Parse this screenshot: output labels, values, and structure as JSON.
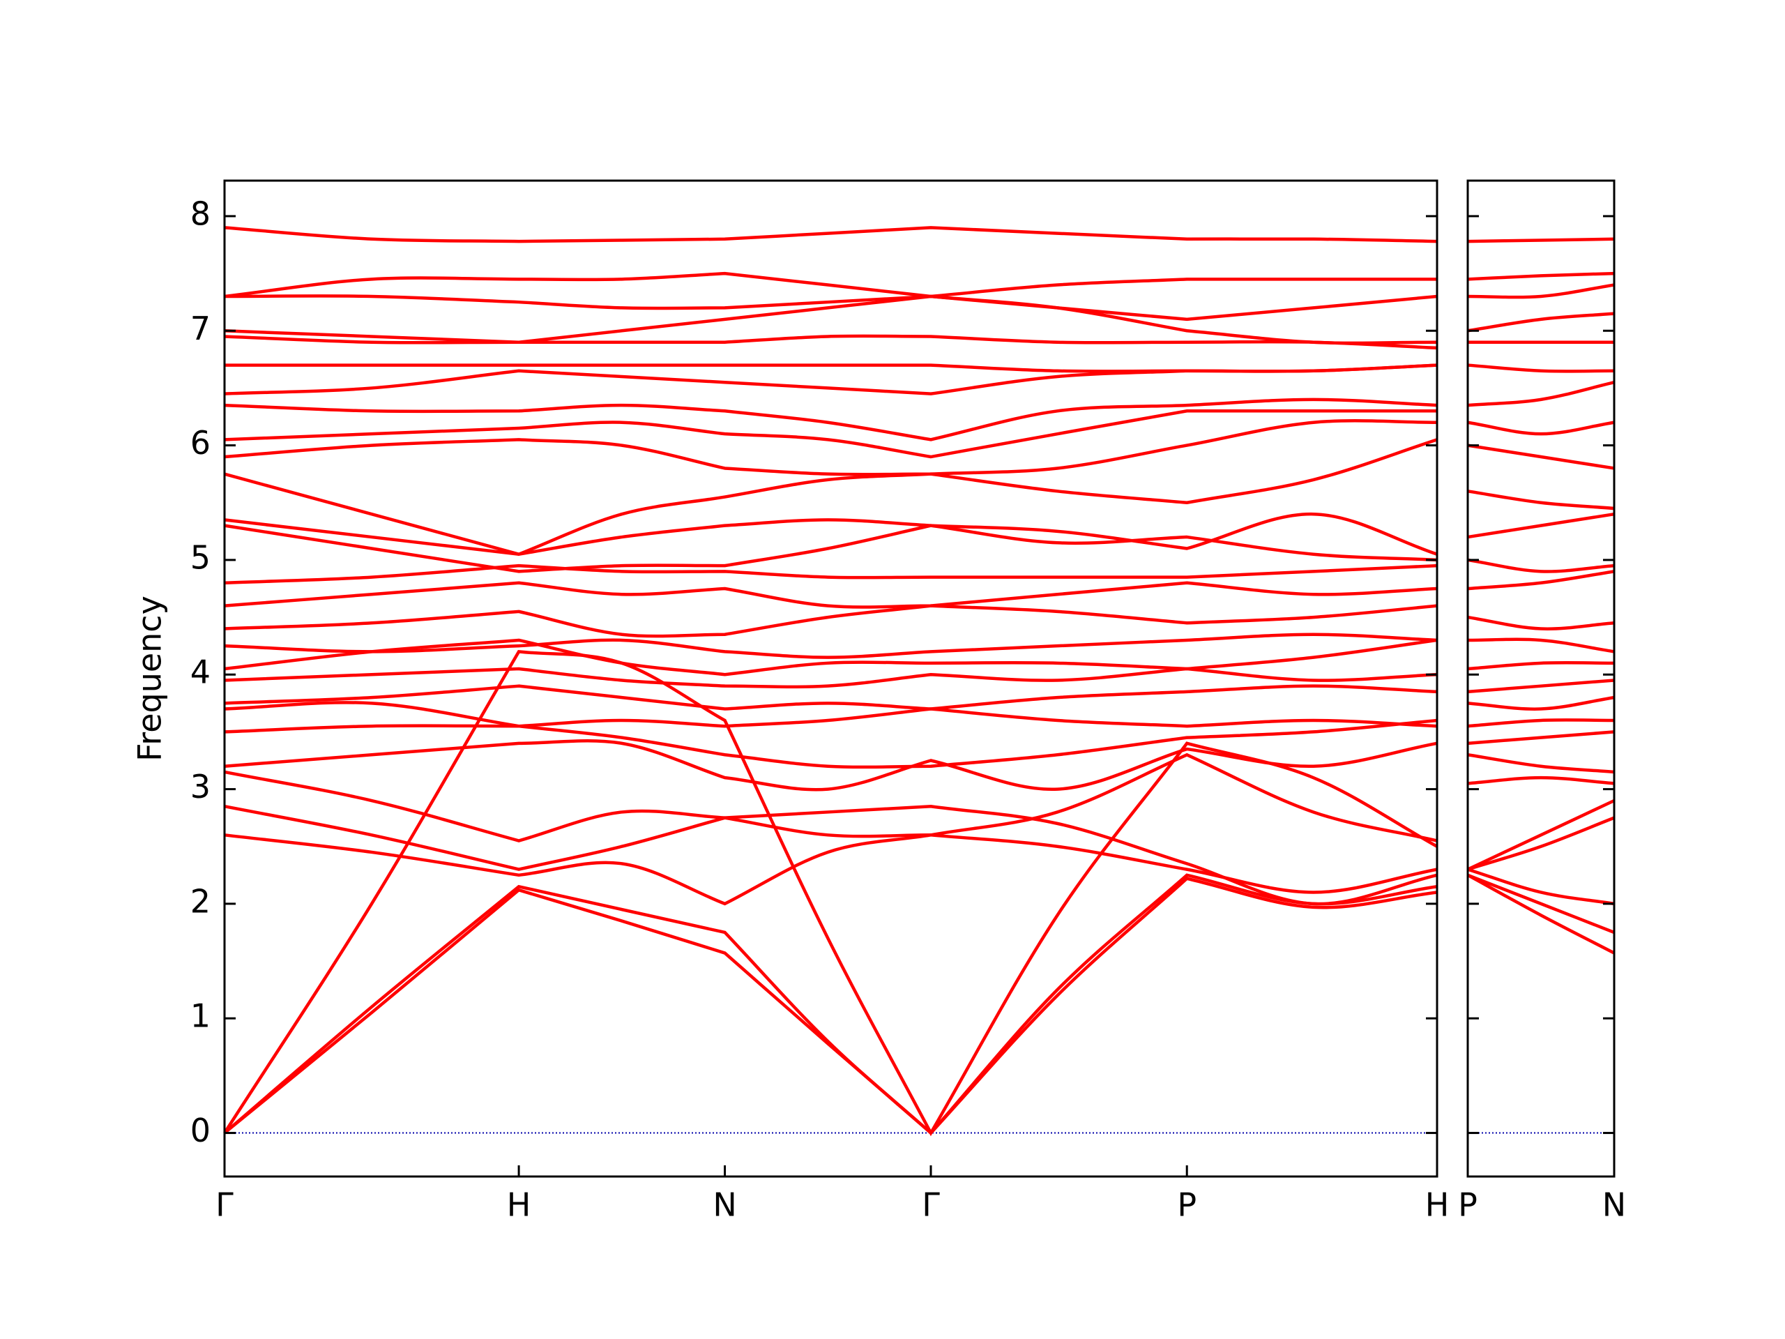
{
  "chart_data": [
    {
      "type": "line",
      "ylabel": "Frequency",
      "color": "#ff0000",
      "hline": 0,
      "hline_color": "#0000aa",
      "xlim": [
        0,
        4.12
      ],
      "ylim": [
        -0.38,
        8.31
      ],
      "yticks": [
        0,
        1,
        2,
        3,
        4,
        5,
        6,
        7,
        8
      ],
      "xticks": [
        {
          "value": 0,
          "label": "Γ"
        },
        {
          "value": 1,
          "label": "H"
        },
        {
          "value": 1.7,
          "label": "N"
        },
        {
          "value": 2.4,
          "label": "Γ"
        },
        {
          "value": 3.27,
          "label": "P"
        },
        {
          "value": 4.12,
          "label": "H"
        }
      ],
      "x": [
        0,
        0.5,
        1,
        1.35,
        1.7,
        2.05,
        2.4,
        2.83,
        3.27,
        3.7,
        4.12
      ],
      "series": [
        {
          "values": [
            0,
            1.05,
            2.12,
            1.85,
            1.57,
            0.78,
            0,
            1.2,
            2.22,
            1.97,
            2.1
          ]
        },
        {
          "values": [
            0,
            1.1,
            2.15,
            1.95,
            1.75,
            0.8,
            0,
            1.25,
            2.25,
            2.0,
            2.15
          ]
        },
        {
          "values": [
            0,
            2.0,
            4.2,
            4.1,
            3.6,
            1.7,
            0,
            1.9,
            3.4,
            3.1,
            2.5
          ]
        },
        {
          "values": [
            2.6,
            2.45,
            2.25,
            2.35,
            2.0,
            2.45,
            2.6,
            2.5,
            2.3,
            2.1,
            2.3
          ]
        },
        {
          "values": [
            2.85,
            2.6,
            2.3,
            2.5,
            2.75,
            2.8,
            2.85,
            2.7,
            2.35,
            2.0,
            2.25
          ]
        },
        {
          "values": [
            3.15,
            2.9,
            2.55,
            2.8,
            2.75,
            2.6,
            2.6,
            2.8,
            3.3,
            2.8,
            2.55
          ]
        },
        {
          "values": [
            3.2,
            3.3,
            3.4,
            3.4,
            3.1,
            3.0,
            3.25,
            3.0,
            3.35,
            3.2,
            3.4
          ]
        },
        {
          "values": [
            3.5,
            3.55,
            3.55,
            3.45,
            3.3,
            3.2,
            3.2,
            3.3,
            3.45,
            3.5,
            3.6
          ]
        },
        {
          "values": [
            3.7,
            3.75,
            3.55,
            3.6,
            3.55,
            3.6,
            3.7,
            3.6,
            3.55,
            3.6,
            3.55
          ]
        },
        {
          "values": [
            3.75,
            3.8,
            3.9,
            3.8,
            3.7,
            3.75,
            3.7,
            3.8,
            3.85,
            3.9,
            3.85
          ]
        },
        {
          "values": [
            3.95,
            4.0,
            4.05,
            3.95,
            3.9,
            3.9,
            4.0,
            3.95,
            4.05,
            3.95,
            4.0
          ]
        },
        {
          "values": [
            4.05,
            4.2,
            4.3,
            4.1,
            4.0,
            4.1,
            4.1,
            4.1,
            4.05,
            4.15,
            4.3
          ]
        },
        {
          "values": [
            4.25,
            4.2,
            4.25,
            4.3,
            4.2,
            4.15,
            4.2,
            4.25,
            4.3,
            4.35,
            4.3
          ]
        },
        {
          "values": [
            4.4,
            4.45,
            4.55,
            4.35,
            4.35,
            4.5,
            4.6,
            4.55,
            4.45,
            4.5,
            4.6
          ]
        },
        {
          "values": [
            4.6,
            4.7,
            4.8,
            4.7,
            4.75,
            4.6,
            4.6,
            4.7,
            4.8,
            4.7,
            4.75
          ]
        },
        {
          "values": [
            4.8,
            4.85,
            4.95,
            4.9,
            4.9,
            4.85,
            4.85,
            4.85,
            4.85,
            4.9,
            4.95
          ]
        },
        {
          "values": [
            5.3,
            5.1,
            4.9,
            4.95,
            4.95,
            5.1,
            5.3,
            5.15,
            5.2,
            5.05,
            5.0
          ]
        },
        {
          "values": [
            5.35,
            5.2,
            5.05,
            5.2,
            5.3,
            5.35,
            5.3,
            5.25,
            5.1,
            5.4,
            5.05
          ]
        },
        {
          "values": [
            5.75,
            5.4,
            5.05,
            5.4,
            5.55,
            5.7,
            5.75,
            5.6,
            5.5,
            5.7,
            6.05
          ]
        },
        {
          "values": [
            5.9,
            6.0,
            6.05,
            6.0,
            5.8,
            5.75,
            5.75,
            5.8,
            6.0,
            6.2,
            6.2
          ]
        },
        {
          "values": [
            6.05,
            6.1,
            6.15,
            6.2,
            6.1,
            6.05,
            5.9,
            6.1,
            6.3,
            6.3,
            6.3
          ]
        },
        {
          "values": [
            6.35,
            6.3,
            6.3,
            6.35,
            6.3,
            6.2,
            6.05,
            6.3,
            6.35,
            6.4,
            6.35
          ]
        },
        {
          "values": [
            6.45,
            6.5,
            6.65,
            6.6,
            6.55,
            6.5,
            6.45,
            6.6,
            6.65,
            6.65,
            6.7
          ]
        },
        {
          "values": [
            6.7,
            6.7,
            6.7,
            6.7,
            6.7,
            6.7,
            6.7,
            6.65,
            6.65,
            6.65,
            6.7
          ]
        },
        {
          "values": [
            6.95,
            6.9,
            6.9,
            6.9,
            6.9,
            6.95,
            6.95,
            6.9,
            6.9,
            6.9,
            6.85
          ]
        },
        {
          "values": [
            7.0,
            6.95,
            6.9,
            7.0,
            7.1,
            7.2,
            7.3,
            7.2,
            7.0,
            6.9,
            6.9
          ]
        },
        {
          "values": [
            7.3,
            7.3,
            7.25,
            7.2,
            7.2,
            7.25,
            7.3,
            7.2,
            7.1,
            7.2,
            7.3
          ]
        },
        {
          "values": [
            7.3,
            7.45,
            7.45,
            7.45,
            7.5,
            7.4,
            7.3,
            7.4,
            7.45,
            7.45,
            7.45
          ]
        },
        {
          "values": [
            7.9,
            7.8,
            7.78,
            7.79,
            7.8,
            7.85,
            7.9,
            7.85,
            7.8,
            7.8,
            7.78
          ]
        }
      ]
    },
    {
      "type": "line",
      "color": "#ff0000",
      "hline": 0,
      "hline_color": "#0000aa",
      "xlim": [
        4.12,
        4.62
      ],
      "ylim": [
        -0.38,
        8.31
      ],
      "yticks": [
        0,
        1,
        2,
        3,
        4,
        5,
        6,
        7,
        8
      ],
      "xticks": [
        {
          "value": 4.12,
          "label": "P"
        },
        {
          "value": 4.62,
          "label": "N"
        }
      ],
      "x": [
        4.12,
        4.37,
        4.62
      ],
      "series": [
        {
          "values": [
            2.25,
            1.9,
            1.57
          ]
        },
        {
          "values": [
            2.25,
            2.0,
            1.75
          ]
        },
        {
          "values": [
            2.3,
            2.1,
            2.0
          ]
        },
        {
          "values": [
            2.3,
            2.5,
            2.75
          ]
        },
        {
          "values": [
            2.3,
            2.6,
            2.9
          ]
        },
        {
          "values": [
            3.05,
            3.1,
            3.05
          ]
        },
        {
          "values": [
            3.3,
            3.2,
            3.15
          ]
        },
        {
          "values": [
            3.4,
            3.45,
            3.5
          ]
        },
        {
          "values": [
            3.55,
            3.6,
            3.6
          ]
        },
        {
          "values": [
            3.75,
            3.7,
            3.8
          ]
        },
        {
          "values": [
            3.85,
            3.9,
            3.95
          ]
        },
        {
          "values": [
            4.05,
            4.1,
            4.1
          ]
        },
        {
          "values": [
            4.3,
            4.3,
            4.2
          ]
        },
        {
          "values": [
            4.5,
            4.4,
            4.45
          ]
        },
        {
          "values": [
            4.75,
            4.8,
            4.9
          ]
        },
        {
          "values": [
            5.0,
            4.9,
            4.95
          ]
        },
        {
          "values": [
            5.2,
            5.3,
            5.4
          ]
        },
        {
          "values": [
            5.6,
            5.5,
            5.45
          ]
        },
        {
          "values": [
            6.0,
            5.9,
            5.8
          ]
        },
        {
          "values": [
            6.2,
            6.1,
            6.2
          ]
        },
        {
          "values": [
            6.35,
            6.4,
            6.55
          ]
        },
        {
          "values": [
            6.7,
            6.65,
            6.65
          ]
        },
        {
          "values": [
            6.9,
            6.9,
            6.9
          ]
        },
        {
          "values": [
            7.0,
            7.1,
            7.15
          ]
        },
        {
          "values": [
            7.3,
            7.3,
            7.4
          ]
        },
        {
          "values": [
            7.45,
            7.48,
            7.5
          ]
        },
        {
          "values": [
            7.78,
            7.79,
            7.8
          ]
        }
      ]
    }
  ]
}
